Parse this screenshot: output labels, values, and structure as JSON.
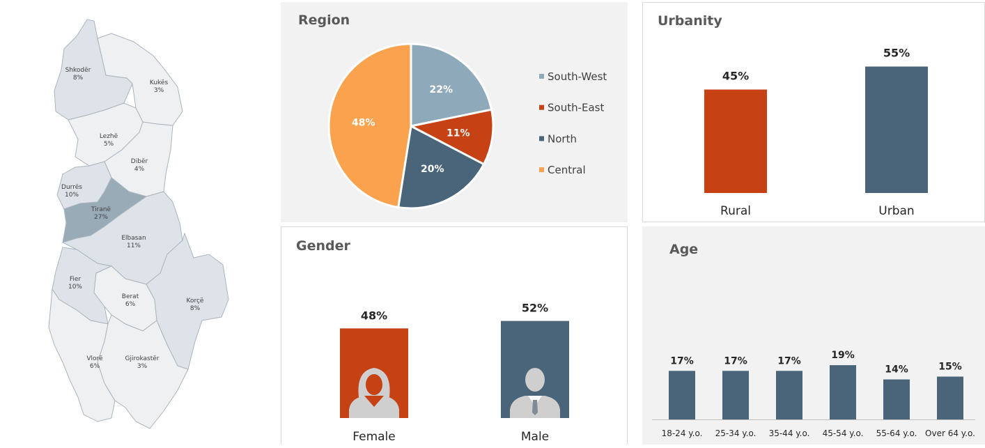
{
  "colors": {
    "sw": "#8ea9b9",
    "se": "#c64114",
    "north": "#4a6579",
    "central": "#fba24e",
    "map_light": "#eef0f2",
    "map_mid": "#dde3e9",
    "map_dark": "#9aabb8",
    "map_border": "#aab4bd",
    "label_dark": "#262626",
    "panel_bg": "#f2f2f2",
    "panel_border": "#d9d9d9"
  },
  "map": {
    "districts": [
      {
        "name": "Shkodër",
        "value": "8%",
        "shade": "mid"
      },
      {
        "name": "Kukës",
        "value": "3%",
        "shade": "light"
      },
      {
        "name": "Lezhë",
        "value": "5%",
        "shade": "light"
      },
      {
        "name": "Dibër",
        "value": "4%",
        "shade": "light"
      },
      {
        "name": "Durrës",
        "value": "10%",
        "shade": "mid"
      },
      {
        "name": "Tiranë",
        "value": "27%",
        "shade": "dark"
      },
      {
        "name": "Elbasan",
        "value": "11%",
        "shade": "mid"
      },
      {
        "name": "Fier",
        "value": "10%",
        "shade": "mid"
      },
      {
        "name": "Berat",
        "value": "6%",
        "shade": "light"
      },
      {
        "name": "Korçë",
        "value": "8%",
        "shade": "mid"
      },
      {
        "name": "Vlorë",
        "value": "6%",
        "shade": "light"
      },
      {
        "name": "Gjirokastër",
        "value": "3%",
        "shade": "light"
      }
    ]
  },
  "chart_data": [
    {
      "type": "pie",
      "title": "Region",
      "labels": [
        "South-West",
        "South-East",
        "North",
        "Central"
      ],
      "values": [
        22,
        11,
        20,
        48
      ],
      "value_labels": [
        "22%",
        "11%",
        "20%",
        "48%"
      ],
      "colors": [
        "#8ea9b9",
        "#c64114",
        "#4a6579",
        "#fba24e"
      ],
      "legend": "right"
    },
    {
      "type": "bar",
      "title": "Urbanity",
      "categories": [
        "Rural",
        "Urban"
      ],
      "values": [
        45,
        55
      ],
      "value_labels": [
        "45%",
        "55%"
      ],
      "colors": [
        "#c64114",
        "#4a6579"
      ]
    },
    {
      "type": "bar",
      "title": "Gender",
      "categories": [
        "Female",
        "Male"
      ],
      "values": [
        48,
        52
      ],
      "value_labels": [
        "48%",
        "52%"
      ],
      "colors": [
        "#c64114",
        "#4a6579"
      ],
      "icons": [
        "female-person-icon",
        "male-person-icon"
      ]
    },
    {
      "type": "bar",
      "title": "Age",
      "categories": [
        "18-24 y.o.",
        "25-34 y.o.",
        "35-44 y.o.",
        "45-54 y.o.",
        "55-64 y.o.",
        "Over 64 y.o."
      ],
      "values": [
        17,
        17,
        17,
        19,
        14,
        15
      ],
      "value_labels": [
        "17%",
        "17%",
        "17%",
        "19%",
        "14%",
        "15%"
      ],
      "color": "#4a6579"
    }
  ]
}
